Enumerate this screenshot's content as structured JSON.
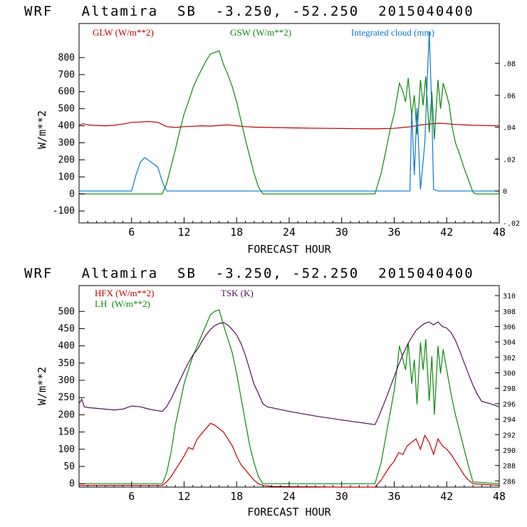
{
  "chart_data": [
    {
      "type": "line",
      "title": "WRF   Altamira  SB  -3.250, -52.250  2015040400",
      "xlabel": "FORECAST HOUR",
      "ylabel": "W/m**2",
      "xlim": [
        0,
        48
      ],
      "ylim": [
        -170,
        1000
      ],
      "xticks": [
        6,
        12,
        18,
        24,
        30,
        36,
        42,
        48
      ],
      "yticks": [
        -100,
        0,
        100,
        200,
        300,
        400,
        500,
        600,
        700,
        800
      ],
      "y2lim": [
        -0.02,
        0.105
      ],
      "y2ticks": [
        -0.02,
        0,
        0.02,
        0.04,
        0.06,
        0.08
      ],
      "y2ticklabels": [
        "-.02",
        "0",
        ".02",
        ".04",
        ".06",
        ".08"
      ],
      "grid": false,
      "legend_position": "top",
      "series": [
        {
          "name": "GLW (W/m**2)",
          "color": "#c00000",
          "axis": "left",
          "x": [
            0,
            0.5,
            1,
            2,
            3,
            4,
            5,
            6,
            7,
            8,
            9,
            10,
            11,
            12,
            13,
            14,
            15,
            16,
            17,
            18,
            19,
            20,
            22,
            24,
            26,
            28,
            30,
            32,
            34,
            36,
            37,
            38,
            39,
            40,
            41,
            42,
            43,
            44,
            45,
            46,
            47,
            48
          ],
          "y": [
            405,
            412,
            405,
            402,
            400,
            403,
            410,
            420,
            422,
            425,
            420,
            395,
            390,
            395,
            397,
            400,
            398,
            402,
            405,
            400,
            395,
            392,
            390,
            388,
            386,
            385,
            384,
            383,
            382,
            385,
            390,
            395,
            405,
            410,
            415,
            412,
            408,
            405,
            403,
            402,
            401,
            400
          ]
        },
        {
          "name": "GSW (W/m**2)",
          "color": "#0a8a0a",
          "axis": "left",
          "x": [
            0,
            9.5,
            10,
            10.5,
            11,
            11.5,
            12,
            12.5,
            13,
            13.5,
            14,
            14.5,
            15,
            15.5,
            16,
            16.5,
            17,
            17.5,
            18,
            18.5,
            19,
            19.5,
            20,
            20.5,
            21,
            21.5,
            33.8,
            34.5,
            35,
            35.5,
            36,
            36.3,
            36.6,
            37,
            37.3,
            37.6,
            38,
            38.3,
            38.6,
            39,
            39.3,
            39.6,
            40,
            40.3,
            40.6,
            41,
            41.3,
            41.6,
            42,
            42.3,
            42.6,
            43,
            43.5,
            44,
            44.5,
            45,
            45.3,
            48
          ],
          "y": [
            0,
            0,
            60,
            160,
            260,
            370,
            470,
            540,
            620,
            680,
            730,
            780,
            820,
            830,
            840,
            760,
            700,
            630,
            540,
            430,
            320,
            220,
            120,
            40,
            0,
            0,
            0,
            120,
            240,
            370,
            470,
            560,
            650,
            600,
            540,
            680,
            460,
            580,
            350,
            670,
            520,
            690,
            360,
            600,
            320,
            670,
            500,
            650,
            580,
            520,
            400,
            300,
            230,
            150,
            80,
            10,
            0,
            0
          ]
        },
        {
          "name": "Integrated cloud (mm)",
          "color": "#0a78d2",
          "axis": "right",
          "x": [
            0,
            6,
            6.5,
            7,
            7.5,
            8,
            8.5,
            9,
            9.5,
            10,
            10.5,
            37.8,
            38,
            38.3,
            38.6,
            39,
            39.5,
            40,
            40.3,
            40.5,
            41,
            48
          ],
          "y": [
            0,
            0,
            0.01,
            0.018,
            0.021,
            0.019,
            0.017,
            0.015,
            0.006,
            0,
            0,
            0,
            0.05,
            0.01,
            0.052,
            0.001,
            0.03,
            0.1,
            0.05,
            0.001,
            0,
            0
          ]
        }
      ]
    },
    {
      "type": "line",
      "title": "WRF   Altamira  SB  -3.250, -52.250  2015040400",
      "xlabel": "FORECAST HOUR",
      "ylabel": "W/m**2",
      "xlim": [
        0,
        48
      ],
      "ylim": [
        -10,
        575
      ],
      "xticks": [
        6,
        12,
        18,
        24,
        30,
        36,
        42,
        48
      ],
      "yticks": [
        0,
        50,
        100,
        150,
        200,
        250,
        300,
        350,
        400,
        450,
        500
      ],
      "y2lim": [
        285.2,
        311.3
      ],
      "y2ticks": [
        286,
        288,
        290,
        292,
        294,
        296,
        298,
        300,
        302,
        304,
        306,
        308,
        310
      ],
      "y2ticklabels": [
        "286",
        "288",
        "290",
        "292",
        "294",
        "296",
        "298",
        "300",
        "302",
        "304",
        "306",
        "308",
        "310"
      ],
      "grid": false,
      "legend_position": "top-left",
      "series": [
        {
          "name": "HFX (W/m**2)",
          "color": "#c00000",
          "axis": "left",
          "x": [
            0,
            9.5,
            10,
            10.5,
            11,
            11.5,
            12,
            12.5,
            13,
            13.5,
            14,
            14.5,
            15,
            15.5,
            16,
            16.5,
            17,
            17.5,
            18,
            18.5,
            19,
            19.5,
            20,
            20.5,
            21,
            22,
            30,
            33.8,
            34.5,
            35,
            35.5,
            36,
            36.5,
            37,
            37.5,
            38,
            38.5,
            39,
            39.5,
            40,
            40.5,
            41,
            41.5,
            42,
            42.5,
            43,
            43.5,
            44,
            44.5,
            45,
            48
          ],
          "y": [
            -5,
            -5,
            5,
            20,
            40,
            60,
            80,
            105,
            100,
            130,
            145,
            160,
            175,
            170,
            160,
            150,
            130,
            110,
            80,
            55,
            40,
            25,
            10,
            0,
            -5,
            -8,
            -10,
            -10,
            10,
            30,
            50,
            65,
            90,
            85,
            110,
            120,
            130,
            100,
            140,
            120,
            85,
            130,
            110,
            100,
            85,
            65,
            45,
            25,
            10,
            0,
            -5
          ]
        },
        {
          "name": "LH  (W/m**2)",
          "color": "#0a8a0a",
          "axis": "left",
          "x": [
            0,
            9.5,
            10,
            10.5,
            11,
            11.5,
            12,
            12.5,
            13,
            13.5,
            14,
            14.5,
            15,
            15.5,
            16,
            16.5,
            17,
            17.5,
            18,
            18.5,
            19,
            19.5,
            20,
            20.5,
            21,
            21.5,
            33.8,
            34.5,
            35,
            35.5,
            36,
            36.3,
            36.6,
            37,
            37.3,
            37.6,
            38,
            38.3,
            38.6,
            39,
            39.3,
            39.6,
            40,
            40.3,
            40.6,
            41,
            41.3,
            41.6,
            42,
            42.5,
            43,
            43.5,
            44,
            44.5,
            45,
            48
          ],
          "y": [
            0,
            0,
            30,
            90,
            170,
            230,
            290,
            330,
            370,
            400,
            430,
            460,
            490,
            500,
            505,
            460,
            420,
            380,
            320,
            250,
            180,
            110,
            60,
            20,
            0,
            0,
            0,
            60,
            130,
            200,
            270,
            330,
            400,
            360,
            330,
            410,
            290,
            360,
            230,
            410,
            330,
            420,
            240,
            370,
            200,
            400,
            320,
            390,
            330,
            260,
            200,
            150,
            100,
            50,
            5,
            0
          ]
        },
        {
          "name": "TSK (K)",
          "color": "#55105a",
          "axis": "right",
          "x": [
            0,
            0.3,
            0.6,
            1,
            2,
            3,
            4,
            5,
            6,
            7,
            8,
            9,
            9.5,
            10,
            10.5,
            11,
            11.5,
            12,
            12.5,
            13,
            13.5,
            14,
            14.5,
            15,
            15.5,
            16,
            16.5,
            17,
            17.5,
            18,
            18.5,
            19,
            19.5,
            20,
            20.5,
            21,
            21.5,
            24,
            27,
            30,
            33.8,
            34,
            34.5,
            35,
            35.5,
            36,
            36.5,
            37,
            37.5,
            38,
            38.5,
            39,
            39.5,
            40,
            40.5,
            41,
            41.5,
            42,
            42.5,
            43,
            43.5,
            44,
            44.5,
            45,
            45.5,
            46,
            47,
            48
          ],
          "y": [
            296,
            296.6,
            295.6,
            295.5,
            295.4,
            295.3,
            295.2,
            295.3,
            295.7,
            295.6,
            295.3,
            295.1,
            295.0,
            295.6,
            296.6,
            297.8,
            299.0,
            300.2,
            301.3,
            302.3,
            303.0,
            304.0,
            304.9,
            305.6,
            306.1,
            306.4,
            306.5,
            306.2,
            305.6,
            304.9,
            303.8,
            302.3,
            300.4,
            298.5,
            297.3,
            296.0,
            295.6,
            295.0,
            294.4,
            293.9,
            293.3,
            293.7,
            295.1,
            296.5,
            298.0,
            299.5,
            301.0,
            302.4,
            303.6,
            304.6,
            305.5,
            306.0,
            306.4,
            306.6,
            306.2,
            306.6,
            306.0,
            305.8,
            305.2,
            304.2,
            302.8,
            301.3,
            299.8,
            298.4,
            297.2,
            296.3,
            296.0,
            295.6
          ]
        }
      ]
    }
  ]
}
